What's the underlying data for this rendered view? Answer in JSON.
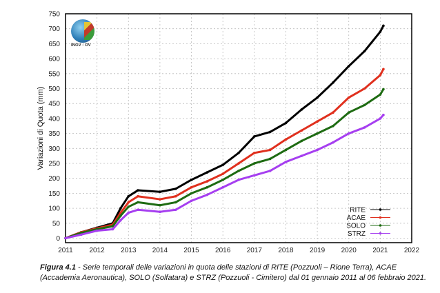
{
  "chart_data": {
    "type": "line",
    "title": "",
    "xlabel": "",
    "ylabel": "Variazioni di Quota (mm)",
    "xlim": [
      2011,
      2022
    ],
    "ylim": [
      -15,
      750
    ],
    "xticks": [
      "2011",
      "2012",
      "2013",
      "2014",
      "2015",
      "2016",
      "2017",
      "2018",
      "2019",
      "2020",
      "2021",
      "2022"
    ],
    "yticks": [
      "0",
      "50",
      "100",
      "150",
      "200",
      "250",
      "300",
      "350",
      "400",
      "450",
      "500",
      "550",
      "600",
      "650",
      "700",
      "750"
    ],
    "grid": true,
    "legend_position": "bottom-right",
    "logo_text": "INGV - OV",
    "series": [
      {
        "name": "RITE",
        "color": "#000000",
        "x": [
          2011,
          2011.5,
          2012,
          2012.5,
          2012.75,
          2013,
          2013.3,
          2014,
          2014.5,
          2015,
          2015.5,
          2016,
          2016.5,
          2017,
          2017.5,
          2018,
          2018.5,
          2019,
          2019.5,
          2020,
          2020.5,
          2021,
          2021.1
        ],
        "y": [
          0,
          20,
          35,
          50,
          100,
          140,
          160,
          155,
          165,
          195,
          220,
          245,
          285,
          340,
          355,
          385,
          430,
          470,
          520,
          575,
          625,
          690,
          710
        ]
      },
      {
        "name": "ACAE",
        "color": "#e0301e",
        "x": [
          2011,
          2011.5,
          2012,
          2012.5,
          2012.75,
          2013,
          2013.3,
          2014,
          2014.5,
          2015,
          2015.5,
          2016,
          2016.5,
          2017,
          2017.5,
          2018,
          2018.5,
          2019,
          2019.5,
          2020,
          2020.5,
          2021,
          2021.1
        ],
        "y": [
          0,
          20,
          33,
          45,
          85,
          120,
          140,
          130,
          140,
          170,
          190,
          215,
          250,
          285,
          295,
          330,
          360,
          390,
          420,
          470,
          500,
          545,
          565
        ]
      },
      {
        "name": "SOLO",
        "color": "#1e6b12",
        "x": [
          2011,
          2011.5,
          2012,
          2012.5,
          2012.75,
          2013,
          2013.3,
          2014,
          2014.5,
          2015,
          2015.5,
          2016,
          2016.5,
          2017,
          2017.5,
          2018,
          2018.5,
          2019,
          2019.5,
          2020,
          2020.5,
          2021,
          2021.1
        ],
        "y": [
          0,
          18,
          30,
          40,
          75,
          105,
          120,
          110,
          120,
          150,
          170,
          195,
          225,
          250,
          265,
          295,
          325,
          350,
          375,
          420,
          445,
          480,
          498
        ]
      },
      {
        "name": "STRZ",
        "color": "#a63ff0",
        "x": [
          2011,
          2011.5,
          2012,
          2012.5,
          2012.75,
          2013,
          2013.3,
          2014,
          2014.5,
          2015,
          2015.5,
          2016,
          2016.5,
          2017,
          2017.5,
          2018,
          2018.5,
          2019,
          2019.5,
          2020,
          2020.5,
          2021,
          2021.1
        ],
        "y": [
          0,
          12,
          25,
          30,
          60,
          85,
          95,
          88,
          95,
          125,
          145,
          170,
          195,
          210,
          225,
          255,
          275,
          295,
          320,
          350,
          370,
          400,
          412
        ]
      }
    ]
  },
  "caption": {
    "label": "Figura 4.1",
    "text": " - Serie temporali delle variazioni in quota delle stazioni di RITE (Pozzuoli – Rione Terra), ACAE (Accademia Aeronautica), SOLO (Solfatara) e STRZ (Pozzuoli - Cimitero) dal 01 gennaio 2011 al 06 febbraio 2021."
  }
}
